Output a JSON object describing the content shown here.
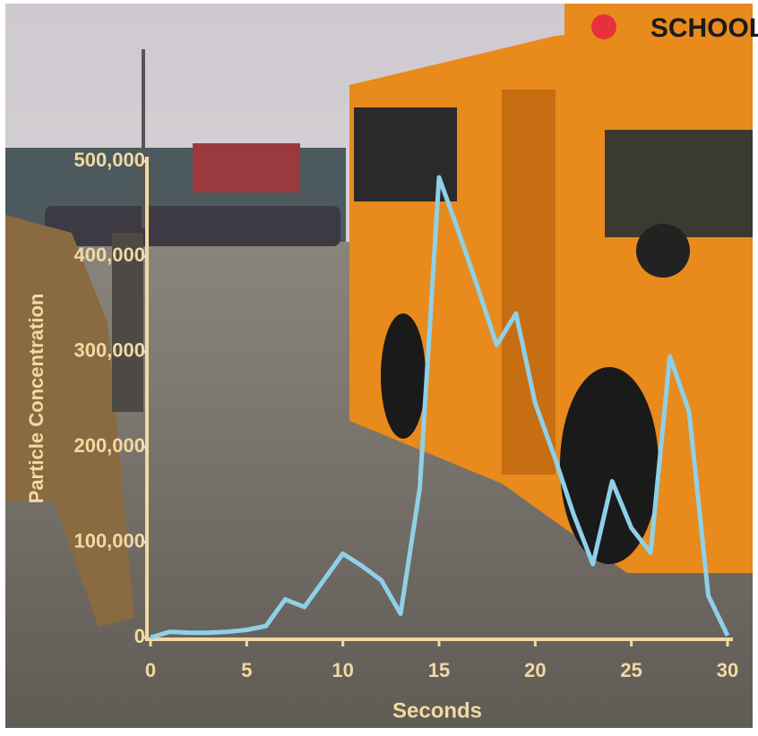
{
  "chart_data": {
    "type": "line",
    "x_label": "Seconds",
    "y_label": "Particle Concentration",
    "x": [
      0,
      1,
      2,
      3,
      4,
      5,
      6,
      7,
      8,
      9,
      10,
      11,
      12,
      13,
      14,
      15,
      16,
      17,
      18,
      19,
      20,
      21,
      22,
      23,
      24,
      25,
      26,
      27,
      28,
      29,
      30
    ],
    "series": [
      {
        "color": "#8fd0e8",
        "values": [
          0,
          6000,
          5000,
          5000,
          6000,
          8000,
          12000,
          40000,
          32000,
          60000,
          88000,
          75000,
          60000,
          25000,
          157000,
          483000,
          427000,
          368000,
          307000,
          340000,
          246000,
          190000,
          129000,
          77000,
          164000,
          115000,
          89000,
          295000,
          237000,
          44000,
          2000
        ]
      }
    ],
    "xlim": [
      0,
      30
    ],
    "xticks": [
      0,
      5,
      10,
      15,
      20,
      25,
      30
    ],
    "ylim": [
      0,
      500000
    ],
    "yticks": [
      0,
      {
        "value": 100000,
        "label": "100,000"
      },
      {
        "value": 200000,
        "label": "200,000"
      },
      {
        "value": 300000,
        "label": "300,000"
      },
      {
        "value": 400000,
        "label": "400,000"
      },
      {
        "value": 500000,
        "label": "500,000"
      }
    ],
    "axis_color": "#f3d9a2"
  },
  "photo": {
    "sign": "SCHOOL"
  }
}
